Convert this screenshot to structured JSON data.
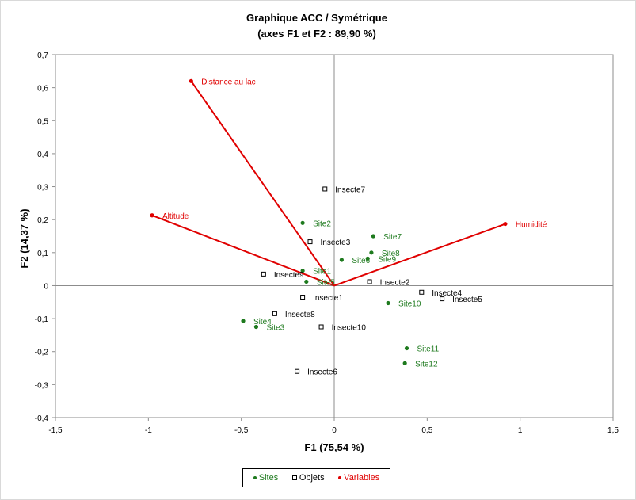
{
  "chart_data": {
    "type": "scatter",
    "title": "Graphique ACC / Symétrique",
    "subtitle": "(axes F1 et F2 : 89,90 %)",
    "xlabel": "F1 (75,54 %)",
    "ylabel": "F2 (14,37 %)",
    "xlim": [
      -1.5,
      1.5
    ],
    "ylim": [
      -0.4,
      0.7
    ],
    "xticks": [
      -1.5,
      -1,
      -0.5,
      0,
      0.5,
      1,
      1.5
    ],
    "xtick_labels": [
      "-1,5",
      "-1",
      "-0,5",
      "0",
      "0,5",
      "1",
      "1,5"
    ],
    "yticks": [
      -0.4,
      -0.3,
      -0.2,
      -0.1,
      0,
      0.1,
      0.2,
      0.3,
      0.4,
      0.5,
      0.6,
      0.7
    ],
    "ytick_labels": [
      "-0,4",
      "-0,3",
      "-0,2",
      "-0,1",
      "0",
      "0,1",
      "0,2",
      "0,3",
      "0,4",
      "0,5",
      "0,6",
      "0,7"
    ],
    "grid": false,
    "legend_position": "bottom",
    "colors": {
      "sites": "#1e7a1e",
      "objets": "#000000",
      "variables": "#e00000"
    },
    "series": [
      {
        "name": "Sites",
        "marker": "dot",
        "points": [
          {
            "label": "Site1",
            "x": -0.17,
            "y": 0.045
          },
          {
            "label": "Site2",
            "x": -0.17,
            "y": 0.19
          },
          {
            "label": "Site3",
            "x": -0.42,
            "y": -0.125
          },
          {
            "label": "Site4",
            "x": -0.49,
            "y": -0.107
          },
          {
            "label": "Site5",
            "x": -0.15,
            "y": 0.012
          },
          {
            "label": "Site6",
            "x": 0.04,
            "y": 0.078
          },
          {
            "label": "Site7",
            "x": 0.21,
            "y": 0.15
          },
          {
            "label": "Site8",
            "x": 0.2,
            "y": 0.1
          },
          {
            "label": "Site9",
            "x": 0.18,
            "y": 0.082
          },
          {
            "label": "Site10",
            "x": 0.29,
            "y": -0.053
          },
          {
            "label": "Site11",
            "x": 0.39,
            "y": -0.19
          },
          {
            "label": "Site12",
            "x": 0.38,
            "y": -0.235
          }
        ]
      },
      {
        "name": "Objets",
        "marker": "square",
        "points": [
          {
            "label": "Insecte1",
            "x": -0.17,
            "y": -0.035
          },
          {
            "label": "Insecte2",
            "x": 0.19,
            "y": 0.012
          },
          {
            "label": "Insecte3",
            "x": -0.13,
            "y": 0.133
          },
          {
            "label": "Insecte4",
            "x": 0.47,
            "y": -0.02
          },
          {
            "label": "Insecte5",
            "x": 0.58,
            "y": -0.04
          },
          {
            "label": "Insecte6",
            "x": -0.2,
            "y": -0.26
          },
          {
            "label": "Insecte7",
            "x": -0.05,
            "y": 0.293
          },
          {
            "label": "Insecte8",
            "x": -0.32,
            "y": -0.085
          },
          {
            "label": "Insecte9",
            "x": -0.38,
            "y": 0.035
          },
          {
            "label": "Insecte10",
            "x": -0.07,
            "y": -0.125
          }
        ]
      },
      {
        "name": "Variables",
        "marker": "dot-vector",
        "points": [
          {
            "label": "Distance au lac",
            "x": -0.77,
            "y": 0.62
          },
          {
            "label": "Altitude",
            "x": -0.98,
            "y": 0.213
          },
          {
            "label": "Humidité",
            "x": 0.92,
            "y": 0.187
          }
        ]
      }
    ]
  }
}
